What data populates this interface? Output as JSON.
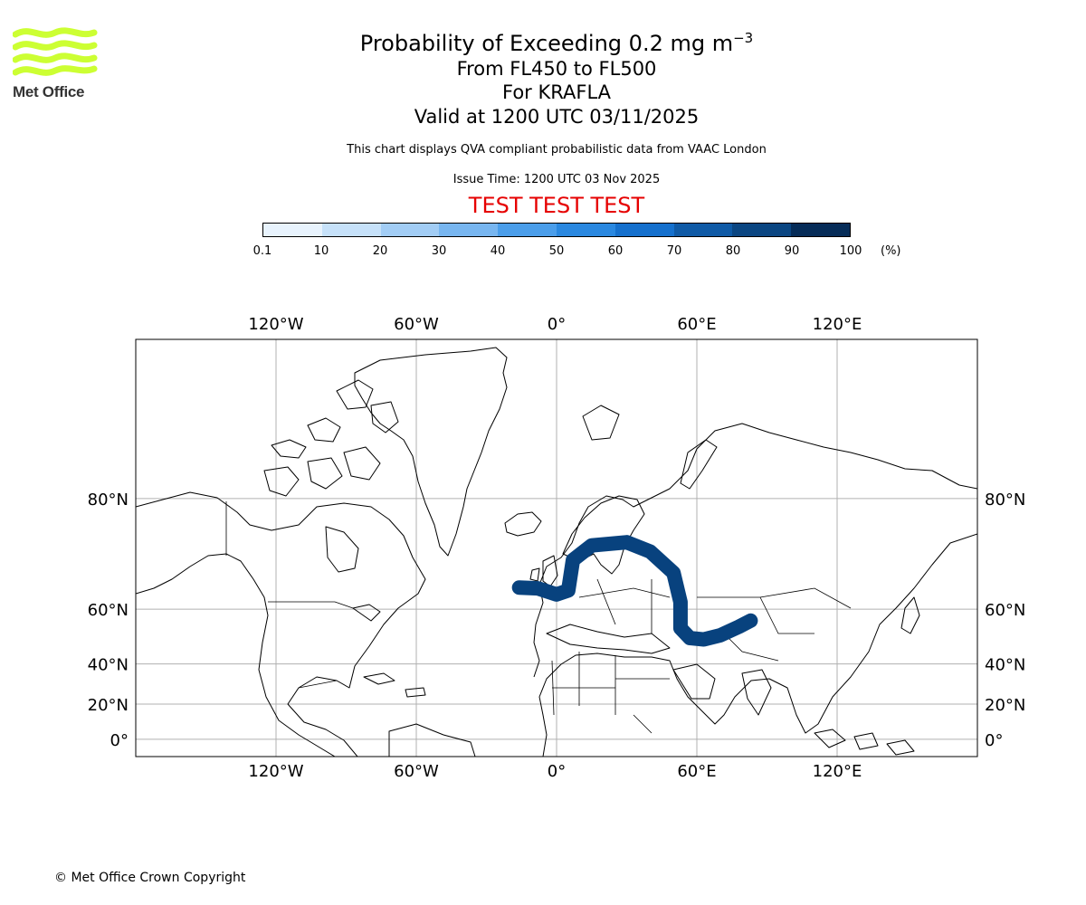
{
  "logo": {
    "text": "Met Office",
    "color": "#ccff33"
  },
  "header": {
    "title_main": "Probability of Exceeding 0.2 mg m",
    "title_sup": "−3",
    "level": "From FL450 to FL500",
    "volcano": "For KRAFLA",
    "valid": "Valid at 1200 UTC 03/11/2025",
    "note": "This chart displays QVA compliant probabilistic data from VAAC London",
    "issue": "Issue Time: 1200 UTC 03 Nov 2025",
    "test_banner": "TEST TEST TEST",
    "test_color": "#e60000"
  },
  "colorbar": {
    "ticks": [
      "0.1",
      "10",
      "20",
      "30",
      "40",
      "50",
      "60",
      "70",
      "80",
      "90",
      "100"
    ],
    "unit": "(%)",
    "colors": [
      "#e8f3fd",
      "#c6e1f9",
      "#a2cdf5",
      "#78b6f0",
      "#4b9eea",
      "#2a88e0",
      "#1570cd",
      "#0f5aa6",
      "#0b4682",
      "#062c58"
    ]
  },
  "map": {
    "lon_labels": [
      "120°W",
      "60°W",
      "0°",
      "60°E",
      "120°E"
    ],
    "lat_labels": [
      "80°N",
      "60°N",
      "40°N",
      "20°N",
      "0°"
    ],
    "plume_color": "#08427e",
    "grid_color": "#b0b0b0"
  },
  "chart_data": {
    "type": "map",
    "projection": "Mercator",
    "lon_range": [
      -180,
      180
    ],
    "lat_range": [
      -10,
      88
    ],
    "lon_ticks": [
      -120,
      -60,
      0,
      60,
      120
    ],
    "lat_ticks": [
      80,
      60,
      40,
      20,
      0
    ],
    "plume": {
      "probability_percent": 95,
      "track_lon_lat": [
        [
          -16,
          65.7
        ],
        [
          -8,
          65.5
        ],
        [
          0,
          64.0
        ],
        [
          5,
          65.0
        ],
        [
          7,
          71.5
        ],
        [
          15,
          74.0
        ],
        [
          30,
          74.5
        ],
        [
          40,
          73.0
        ],
        [
          50,
          69.0
        ],
        [
          53,
          62.0
        ],
        [
          53,
          54.0
        ],
        [
          57,
          50.5
        ],
        [
          63,
          50.0
        ],
        [
          70,
          51.5
        ],
        [
          78,
          54.5
        ],
        [
          83,
          56.5
        ]
      ]
    },
    "source": "KRAFLA"
  },
  "footer": {
    "copyright": "© Met Office Crown Copyright"
  }
}
